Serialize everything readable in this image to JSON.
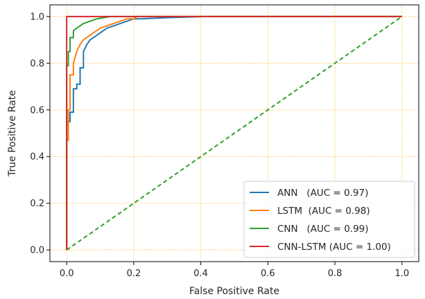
{
  "chart_data": {
    "type": "line",
    "title": "",
    "xlabel": "False Positive Rate",
    "ylabel": "True Positive Rate",
    "xlim": [
      -0.05,
      1.05
    ],
    "ylim": [
      -0.05,
      1.05
    ],
    "xticks": [
      0.0,
      0.2,
      0.4,
      0.6,
      0.8,
      1.0
    ],
    "yticks": [
      0.0,
      0.2,
      0.4,
      0.6,
      0.8,
      1.0
    ],
    "xtick_labels": [
      "0.0",
      "0.2",
      "0.4",
      "0.6",
      "0.8",
      "1.0"
    ],
    "ytick_labels": [
      "0.0",
      "0.2",
      "0.4",
      "0.6",
      "0.8",
      "1.0"
    ],
    "grid": true,
    "grid_color": "#FFB000",
    "grid_style": "dotted",
    "legend_position": "lower-right",
    "series": [
      {
        "name": "ANN   (AUC = 0.97)",
        "color": "#1f77b4",
        "style": "solid",
        "x": [
          0,
          0,
          0.01,
          0.01,
          0.02,
          0.02,
          0.03,
          0.03,
          0.04,
          0.04,
          0.05,
          0.05,
          0.06,
          0.07,
          0.08,
          0.09,
          0.1,
          0.12,
          0.14,
          0.16,
          0.18,
          0.2,
          0.22,
          0.3,
          0.41,
          1.0
        ],
        "y": [
          0,
          0.55,
          0.55,
          0.59,
          0.59,
          0.69,
          0.69,
          0.71,
          0.71,
          0.78,
          0.78,
          0.85,
          0.88,
          0.9,
          0.91,
          0.92,
          0.93,
          0.95,
          0.96,
          0.97,
          0.98,
          0.99,
          0.99,
          0.995,
          1.0,
          1.0
        ]
      },
      {
        "name": "LSTM  (AUC = 0.98)",
        "color": "#ff7f0e",
        "style": "solid",
        "x": [
          0,
          0,
          0.005,
          0.005,
          0.01,
          0.01,
          0.02,
          0.02,
          0.03,
          0.04,
          0.05,
          0.06,
          0.07,
          0.08,
          0.1,
          0.12,
          0.14,
          0.16,
          0.18,
          0.2,
          0.21,
          1.0
        ],
        "y": [
          0,
          0.47,
          0.47,
          0.6,
          0.6,
          0.75,
          0.75,
          0.8,
          0.85,
          0.88,
          0.9,
          0.91,
          0.92,
          0.93,
          0.95,
          0.96,
          0.97,
          0.98,
          0.99,
          0.99,
          1.0,
          1.0
        ]
      },
      {
        "name": "CNN   (AUC = 0.99)",
        "color": "#2ca02c",
        "style": "solid",
        "x": [
          0,
          0,
          0.005,
          0.005,
          0.01,
          0.01,
          0.02,
          0.02,
          0.03,
          0.04,
          0.05,
          0.07,
          0.09,
          0.11,
          0.13,
          0.15,
          1.0
        ],
        "y": [
          0,
          0.79,
          0.79,
          0.85,
          0.85,
          0.91,
          0.91,
          0.94,
          0.95,
          0.96,
          0.97,
          0.98,
          0.99,
          0.995,
          1.0,
          1.0,
          1.0
        ]
      },
      {
        "name": "CNN-LSTM (AUC = 1.00)",
        "color": "#d62728",
        "style": "solid",
        "x": [
          0,
          0,
          1.0
        ],
        "y": [
          0,
          1.0,
          1.0
        ]
      },
      {
        "name": "",
        "color": "#2ca02c",
        "style": "dashed",
        "x": [
          0,
          1.0
        ],
        "y": [
          0,
          1.0
        ]
      }
    ]
  }
}
